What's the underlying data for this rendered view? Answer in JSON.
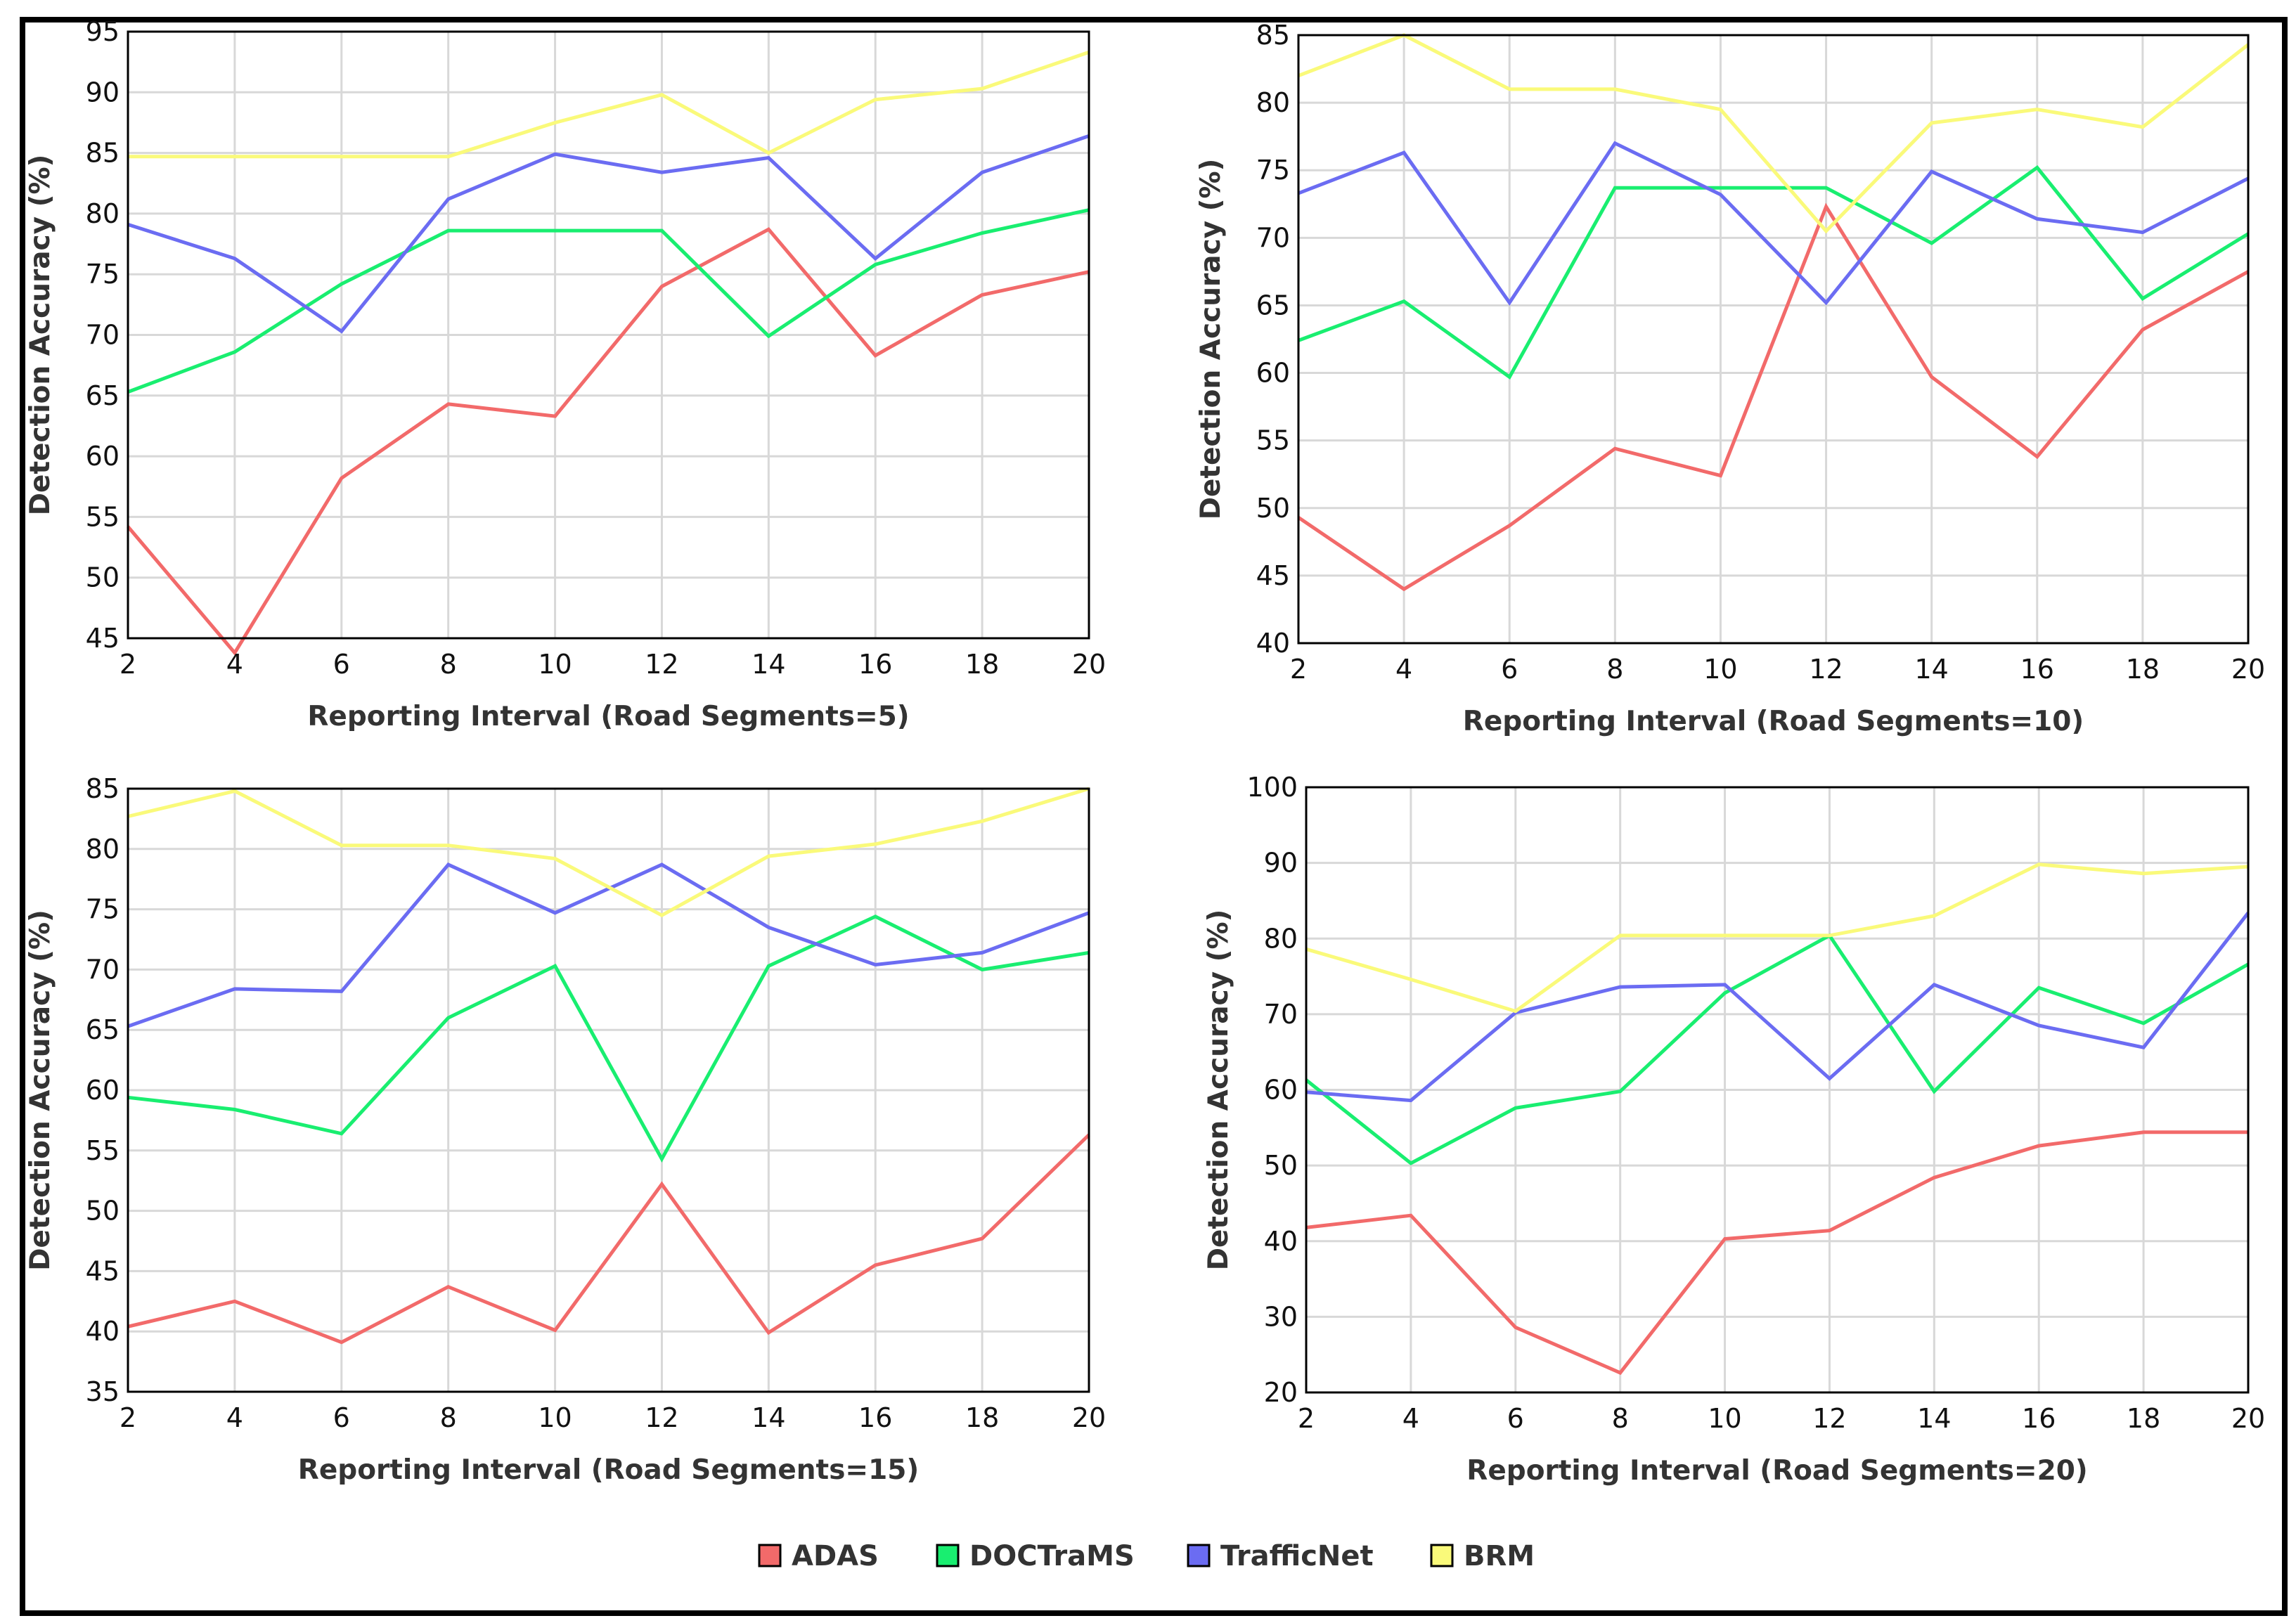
{
  "legend": [
    {
      "name": "ADAS",
      "color": "#f26a6a"
    },
    {
      "name": "DOCTraMS",
      "color": "#19ee70"
    },
    {
      "name": "TrafficNet",
      "color": "#6b6cf2"
    },
    {
      "name": "BRM",
      "color": "#fafa7a"
    }
  ],
  "chart_data": [
    {
      "type": "line",
      "xlabel": "Reporting Interval (Road Segments=5)",
      "ylabel": "Detection Accuracy (%)",
      "x": [
        2,
        4,
        6,
        8,
        10,
        12,
        14,
        16,
        18,
        20
      ],
      "xlim": [
        2,
        20
      ],
      "ylim": [
        45,
        95
      ],
      "yticks": [
        45,
        50,
        55,
        60,
        65,
        70,
        75,
        80,
        85,
        90,
        95
      ],
      "grid": true,
      "series": [
        {
          "name": "ADAS",
          "values": [
            54.2,
            43.8,
            58.2,
            64.3,
            63.3,
            74.0,
            78.7,
            68.3,
            73.3,
            75.2
          ]
        },
        {
          "name": "DOCTraMS",
          "values": [
            65.3,
            68.6,
            74.2,
            78.6,
            78.6,
            78.6,
            69.9,
            75.8,
            78.4,
            80.3
          ]
        },
        {
          "name": "TrafficNet",
          "values": [
            79.1,
            76.3,
            70.3,
            81.2,
            84.9,
            83.4,
            84.6,
            76.3,
            83.4,
            86.4
          ]
        },
        {
          "name": "BRM",
          "values": [
            84.7,
            84.7,
            84.7,
            84.7,
            87.5,
            89.8,
            85.0,
            89.4,
            90.3,
            93.3
          ]
        }
      ]
    },
    {
      "type": "line",
      "xlabel": "Reporting Interval (Road Segments=10)",
      "ylabel": "Detection Accuracy (%)",
      "x": [
        2,
        4,
        6,
        8,
        10,
        12,
        14,
        16,
        18,
        20
      ],
      "xlim": [
        2,
        20
      ],
      "ylim": [
        40,
        85
      ],
      "yticks": [
        40,
        45,
        50,
        55,
        60,
        65,
        70,
        75,
        80,
        85
      ],
      "grid": true,
      "series": [
        {
          "name": "ADAS",
          "values": [
            49.3,
            44.0,
            48.7,
            54.4,
            52.4,
            72.3,
            59.7,
            53.8,
            63.2,
            67.5
          ]
        },
        {
          "name": "DOCTraMS",
          "values": [
            62.4,
            65.3,
            59.7,
            73.7,
            73.7,
            73.7,
            69.6,
            75.2,
            65.5,
            70.3
          ]
        },
        {
          "name": "TrafficNet",
          "values": [
            73.3,
            76.3,
            65.2,
            77.0,
            73.2,
            65.2,
            74.9,
            71.4,
            70.4,
            74.4
          ]
        },
        {
          "name": "BRM",
          "values": [
            82.0,
            85.0,
            81.0,
            81.0,
            79.5,
            70.5,
            78.5,
            79.5,
            78.2,
            84.3
          ]
        }
      ]
    },
    {
      "type": "line",
      "xlabel": "Reporting Interval (Road Segments=15)",
      "ylabel": "Detection Accuracy (%)",
      "x": [
        2,
        4,
        6,
        8,
        10,
        12,
        14,
        16,
        18,
        20
      ],
      "xlim": [
        2,
        20
      ],
      "ylim": [
        35,
        85
      ],
      "yticks": [
        35,
        40,
        45,
        50,
        55,
        60,
        65,
        70,
        75,
        80,
        85
      ],
      "grid": true,
      "series": [
        {
          "name": "ADAS",
          "values": [
            40.4,
            42.5,
            39.1,
            43.7,
            40.1,
            52.2,
            39.9,
            45.5,
            47.7,
            56.3
          ]
        },
        {
          "name": "DOCTraMS",
          "values": [
            59.4,
            58.4,
            56.4,
            66.0,
            70.3,
            54.3,
            70.3,
            74.4,
            70.0,
            71.4
          ]
        },
        {
          "name": "TrafficNet",
          "values": [
            65.3,
            68.4,
            68.2,
            78.7,
            74.7,
            78.7,
            73.5,
            70.4,
            71.4,
            74.7
          ]
        },
        {
          "name": "BRM",
          "values": [
            82.7,
            84.8,
            80.3,
            80.3,
            79.2,
            74.5,
            79.4,
            80.4,
            82.3,
            85.0
          ]
        }
      ]
    },
    {
      "type": "line",
      "xlabel": "Reporting Interval (Road Segments=20)",
      "ylabel": "Detection Accuracy (%)",
      "x": [
        2,
        4,
        6,
        8,
        10,
        12,
        14,
        16,
        18,
        20
      ],
      "xlim": [
        2,
        20
      ],
      "ylim": [
        20,
        100
      ],
      "yticks": [
        20,
        30,
        40,
        50,
        60,
        70,
        80,
        90,
        100
      ],
      "grid": true,
      "series": [
        {
          "name": "ADAS",
          "values": [
            41.8,
            43.4,
            28.6,
            22.6,
            40.3,
            41.4,
            48.4,
            52.6,
            54.4,
            54.4
          ]
        },
        {
          "name": "DOCTraMS",
          "values": [
            61.3,
            50.3,
            57.6,
            59.8,
            72.8,
            80.4,
            59.8,
            73.5,
            68.8,
            76.6
          ]
        },
        {
          "name": "TrafficNet",
          "values": [
            59.7,
            58.6,
            70.2,
            73.6,
            73.9,
            61.5,
            73.9,
            68.5,
            65.6,
            83.4
          ]
        },
        {
          "name": "BRM",
          "values": [
            78.6,
            74.6,
            70.4,
            80.4,
            80.4,
            80.4,
            83.0,
            89.8,
            88.6,
            89.5
          ]
        }
      ]
    }
  ]
}
